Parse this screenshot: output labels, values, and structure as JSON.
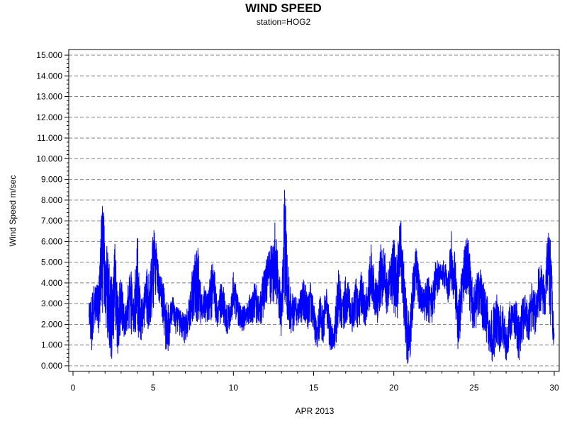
{
  "chart_data": {
    "type": "line",
    "title": "WIND SPEED",
    "subtitle": "station=HOG2",
    "xlabel": "APR 2013",
    "ylabel": "Wind Speed m/sec",
    "xlim": [
      0,
      30
    ],
    "ylim": [
      0,
      15
    ],
    "x_ticks": [
      "0",
      "5",
      "10",
      "15",
      "20",
      "25",
      "30"
    ],
    "y_ticks": [
      "0.000",
      "1.000",
      "2.000",
      "3.000",
      "4.000",
      "5.000",
      "6.000",
      "7.000",
      "8.000",
      "9.000",
      "10.000",
      "11.000",
      "12.000",
      "13.000",
      "14.000",
      "15.000"
    ],
    "grid": "horizontal dashed",
    "colors": {
      "series": "#0000ff",
      "grid": "#808080",
      "axis": "#000000"
    },
    "series": [
      {
        "x": [
          1.0,
          1.2,
          1.4,
          1.6,
          1.8,
          2.0,
          2.2,
          2.4,
          2.6,
          2.8,
          3.0,
          3.2,
          3.4,
          3.6,
          3.8,
          4.0,
          4.2,
          4.4,
          4.6,
          4.8,
          5.0,
          5.2,
          5.4,
          5.6,
          5.8,
          6.0,
          6.2,
          6.4,
          6.6,
          6.8,
          7.0,
          7.2,
          7.4,
          7.6,
          7.8,
          8.0,
          8.2,
          8.4,
          8.6,
          8.8,
          9.0,
          9.2,
          9.4,
          9.6,
          9.8,
          10.0,
          10.2,
          10.4,
          10.6,
          10.8,
          11.0,
          11.2,
          11.4,
          11.6,
          11.8,
          12.0,
          12.2,
          12.4,
          12.6,
          12.8,
          13.0,
          13.2,
          13.4,
          13.6,
          13.8,
          14.0,
          14.2,
          14.4,
          14.6,
          14.8,
          15.0,
          15.2,
          15.4,
          15.6,
          15.8,
          16.0,
          16.2,
          16.4,
          16.6,
          16.8,
          17.0,
          17.2,
          17.4,
          17.6,
          17.8,
          18.0,
          18.2,
          18.4,
          18.6,
          18.8,
          19.0,
          19.2,
          19.4,
          19.6,
          19.8,
          20.0,
          20.2,
          20.4,
          20.6,
          20.8,
          21.0,
          21.2,
          21.4,
          21.6,
          21.8,
          22.0,
          22.2,
          22.4,
          22.6,
          22.8,
          23.0,
          23.2,
          23.4,
          23.6,
          23.8,
          24.0,
          24.2,
          24.4,
          24.6,
          24.8,
          25.0,
          25.2,
          25.4,
          25.6,
          25.8,
          26.0,
          26.2,
          26.4,
          26.6,
          26.8,
          27.0,
          27.2,
          27.4,
          27.6,
          27.8,
          28.0,
          28.2,
          28.4,
          28.6,
          28.8,
          29.0,
          29.2,
          29.4,
          29.6,
          29.8,
          30.0
        ],
        "y": [
          2.5,
          1.5,
          3.5,
          2.8,
          7.5,
          4.2,
          3.8,
          2.0,
          4.5,
          2.2,
          2.8,
          1.8,
          2.5,
          3.8,
          2.4,
          3.5,
          2.0,
          2.8,
          3.8,
          2.5,
          4.5,
          5.5,
          4.0,
          3.5,
          2.0,
          1.5,
          3.0,
          2.5,
          2.5,
          2.0,
          1.8,
          2.2,
          3.0,
          4.5,
          5.0,
          2.5,
          3.2,
          2.8,
          3.5,
          4.5,
          2.5,
          3.5,
          3.0,
          2.2,
          2.5,
          3.8,
          3.0,
          2.5,
          2.2,
          2.5,
          2.8,
          3.0,
          3.5,
          2.5,
          3.5,
          4.0,
          4.5,
          5.0,
          4.0,
          3.5,
          2.5,
          8.0,
          3.0,
          2.5,
          3.0,
          2.5,
          3.0,
          3.5,
          2.5,
          3.5,
          2.5,
          1.5,
          2.5,
          2.0,
          3.0,
          2.0,
          1.0,
          2.0,
          3.0,
          2.5,
          3.5,
          3.0,
          2.5,
          3.5,
          2.8,
          4.0,
          2.5,
          3.5,
          4.5,
          3.5,
          3.0,
          5.0,
          4.5,
          3.5,
          4.5,
          5.0,
          4.0,
          6.5,
          3.5,
          2.0,
          0.8,
          4.0,
          4.5,
          3.5,
          3.0,
          3.5,
          3.5,
          3.0,
          4.0,
          4.5,
          4.5,
          4.5,
          4.0,
          5.0,
          4.5,
          2.0,
          3.5,
          4.5,
          5.0,
          3.5,
          2.5,
          3.5,
          4.0,
          3.0,
          2.5,
          1.5,
          0.8,
          2.5,
          1.5,
          2.0,
          0.5,
          2.0,
          2.5,
          2.0,
          1.0,
          2.5,
          2.5,
          2.0,
          3.0,
          2.5,
          3.5,
          4.0,
          3.0,
          5.0,
          5.0,
          1.5
        ],
        "y_low": [
          2.0,
          0.2,
          2.2,
          1.5,
          2.5,
          2.0,
          1.0,
          0.2,
          1.5,
          0.5,
          1.8,
          1.3,
          1.8,
          1.2,
          1.5,
          1.5,
          1.0,
          1.5,
          1.5,
          1.5,
          2.5,
          3.5,
          3.0,
          2.0,
          0.5,
          0.8,
          2.3,
          1.5,
          1.5,
          1.2,
          1.0,
          1.5,
          2.0,
          2.5,
          1.8,
          2.0,
          2.0,
          2.0,
          2.0,
          2.5,
          1.8,
          2.0,
          2.0,
          1.5,
          1.8,
          2.5,
          2.0,
          1.8,
          1.5,
          2.0,
          2.0,
          2.0,
          2.0,
          2.0,
          2.0,
          3.0,
          3.0,
          3.0,
          3.0,
          2.5,
          1.2,
          3.0,
          2.0,
          1.5,
          1.5,
          2.0,
          2.0,
          2.2,
          1.5,
          1.8,
          1.5,
          0.5,
          1.5,
          1.0,
          1.8,
          0.8,
          0.5,
          1.0,
          2.0,
          1.5,
          2.0,
          2.2,
          1.5,
          2.0,
          1.5,
          2.5,
          1.8,
          2.5,
          3.0,
          2.5,
          2.0,
          3.0,
          2.5,
          2.5,
          3.0,
          2.5,
          2.0,
          4.5,
          2.0,
          0.0,
          0.0,
          2.5,
          3.5,
          2.5,
          2.5,
          2.0,
          2.0,
          2.0,
          3.0,
          3.5,
          4.0,
          3.5,
          3.0,
          3.5,
          3.0,
          0.2,
          2.0,
          3.0,
          3.5,
          2.0,
          1.5,
          2.0,
          2.0,
          1.5,
          1.0,
          0.5,
          0.0,
          1.0,
          0.5,
          1.0,
          0.0,
          1.0,
          1.5,
          1.0,
          0.2,
          1.0,
          1.5,
          1.0,
          1.8,
          1.5,
          2.0,
          2.5,
          2.0,
          3.5,
          1.5,
          0.9
        ],
        "y_high": [
          3.0,
          3.8,
          4.1,
          4.0,
          8.1,
          6.8,
          5.2,
          4.5,
          6.2,
          4.0,
          4.3,
          3.0,
          4.5,
          4.8,
          3.2,
          6.8,
          3.5,
          3.5,
          4.8,
          4.5,
          6.9,
          5.8,
          4.5,
          4.2,
          3.2,
          2.9,
          3.6,
          2.9,
          2.8,
          2.7,
          2.5,
          3.1,
          4.5,
          5.5,
          5.7,
          3.5,
          4.0,
          3.5,
          4.8,
          5.2,
          3.0,
          4.0,
          3.8,
          3.0,
          3.2,
          4.6,
          3.8,
          3.0,
          3.0,
          3.0,
          3.5,
          3.6,
          4.6,
          3.2,
          4.3,
          5.0,
          5.5,
          6.0,
          7.4,
          5.0,
          3.5,
          9.0,
          5.0,
          3.5,
          3.8,
          3.2,
          3.8,
          4.5,
          3.4,
          4.1,
          3.2,
          2.0,
          3.5,
          3.2,
          3.8,
          2.6,
          2.0,
          3.5,
          5.2,
          3.2,
          4.4,
          4.0,
          3.2,
          4.5,
          3.5,
          5.0,
          3.4,
          4.5,
          6.0,
          4.5,
          4.1,
          6.1,
          5.8,
          4.5,
          5.6,
          6.2,
          5.4,
          7.6,
          5.5,
          3.5,
          2.5,
          4.9,
          5.8,
          4.5,
          3.8,
          4.2,
          4.4,
          3.8,
          5.2,
          5.1,
          5.0,
          5.2,
          4.8,
          6.6,
          5.8,
          3.0,
          4.5,
          5.8,
          6.5,
          5.0,
          4.0,
          4.5,
          4.7,
          4.0,
          3.5,
          2.5,
          3.0,
          3.5,
          3.0,
          3.0,
          2.0,
          3.2,
          3.1,
          3.3,
          2.5,
          3.3,
          3.5,
          3.0,
          4.0,
          3.5,
          4.7,
          5.0,
          4.2,
          6.6,
          6.0,
          1.0
        ]
      }
    ]
  }
}
